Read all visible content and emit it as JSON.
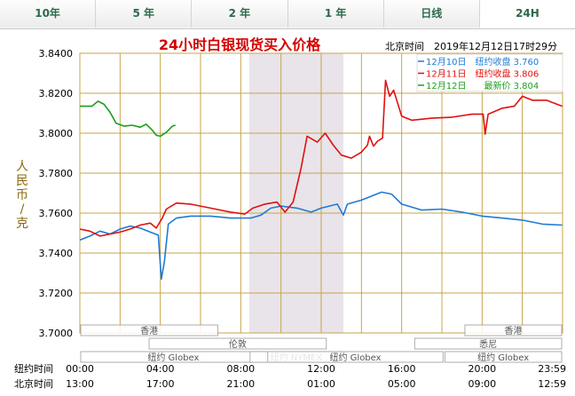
{
  "tabs": [
    {
      "label": "10年",
      "active": false
    },
    {
      "label": "5 年",
      "active": false
    },
    {
      "label": "2 年",
      "active": false
    },
    {
      "label": "1 年",
      "active": false
    },
    {
      "label": "日线",
      "active": false
    },
    {
      "label": "24H",
      "active": true
    }
  ],
  "chart_data": {
    "type": "line",
    "title": "24小时白银现货买入价格",
    "timestamp": "北京时间　2019年12月12日17时29分",
    "ylabel": "人民币/克",
    "ylim": [
      3.7,
      3.84
    ],
    "yticks": [
      "3.7000",
      "3.7200",
      "3.7400",
      "3.7600",
      "3.7800",
      "3.8000",
      "3.8200",
      "3.8400"
    ],
    "x_rows": [
      {
        "label": "纽约时间",
        "ticks": [
          "00:00",
          "04:00",
          "08:00",
          "12:00",
          "16:00",
          "20:00",
          "23:59"
        ]
      },
      {
        "label": "北京时间",
        "ticks": [
          "13:00",
          "17:00",
          "21:00",
          "01:00",
          "05:00",
          "09:00",
          "12:59"
        ]
      }
    ],
    "xlim": [
      0,
      24
    ],
    "grid": true,
    "legend_position": "top-right",
    "highlight_band": [
      8.42,
      13.1
    ],
    "series": [
      {
        "name": "12月10日",
        "legend": "12月10日　纽约收盘 3.760",
        "color": "#1f7ad4",
        "points": [
          [
            0,
            3.7465
          ],
          [
            0.5,
            3.7485
          ],
          [
            1,
            3.751
          ],
          [
            1.5,
            3.7495
          ],
          [
            2,
            3.752
          ],
          [
            2.5,
            3.7535
          ],
          [
            3,
            3.7525
          ],
          [
            3.5,
            3.7505
          ],
          [
            3.9,
            3.749
          ],
          [
            4.05,
            3.727
          ],
          [
            4.2,
            3.7355
          ],
          [
            4.4,
            3.7545
          ],
          [
            4.8,
            3.7575
          ],
          [
            5.5,
            3.7585
          ],
          [
            6.5,
            3.7585
          ],
          [
            7.5,
            3.7575
          ],
          [
            8.5,
            3.7575
          ],
          [
            9,
            3.759
          ],
          [
            9.5,
            3.7625
          ],
          [
            10,
            3.7635
          ],
          [
            10.8,
            3.7625
          ],
          [
            11.5,
            3.7605
          ],
          [
            12,
            3.7625
          ],
          [
            12.8,
            3.7645
          ],
          [
            13.1,
            3.759
          ],
          [
            13.3,
            3.7645
          ],
          [
            14,
            3.7665
          ],
          [
            15,
            3.7705
          ],
          [
            15.5,
            3.7695
          ],
          [
            16,
            3.7645
          ],
          [
            17,
            3.7615
          ],
          [
            18,
            3.762
          ],
          [
            19,
            3.7605
          ],
          [
            20,
            3.7585
          ],
          [
            21,
            3.7575
          ],
          [
            22,
            3.7565
          ],
          [
            23,
            3.7545
          ],
          [
            23.98,
            3.754
          ]
        ]
      },
      {
        "name": "12月11日",
        "legend": "12月11日　纽约收盘 3.806",
        "color": "#e01010",
        "points": [
          [
            0,
            3.752
          ],
          [
            0.5,
            3.751
          ],
          [
            1,
            3.7485
          ],
          [
            1.5,
            3.7495
          ],
          [
            2,
            3.7505
          ],
          [
            2.5,
            3.752
          ],
          [
            3,
            3.754
          ],
          [
            3.5,
            3.755
          ],
          [
            3.8,
            3.7525
          ],
          [
            4.1,
            3.7575
          ],
          [
            4.3,
            3.762
          ],
          [
            4.8,
            3.765
          ],
          [
            5.5,
            3.7645
          ],
          [
            6.5,
            3.7625
          ],
          [
            7.5,
            3.7605
          ],
          [
            8.2,
            3.7595
          ],
          [
            8.6,
            3.7625
          ],
          [
            9.2,
            3.7645
          ],
          [
            9.8,
            3.7655
          ],
          [
            10.2,
            3.7605
          ],
          [
            10.6,
            3.7655
          ],
          [
            11,
            3.7825
          ],
          [
            11.3,
            3.7985
          ],
          [
            11.8,
            3.7955
          ],
          [
            12.2,
            3.8
          ],
          [
            12.6,
            3.794
          ],
          [
            13,
            3.789
          ],
          [
            13.5,
            3.7875
          ],
          [
            14,
            3.7905
          ],
          [
            14.3,
            3.794
          ],
          [
            14.4,
            3.7985
          ],
          [
            14.6,
            3.7935
          ],
          [
            14.8,
            3.796
          ],
          [
            15.05,
            3.7975
          ],
          [
            15.2,
            3.8265
          ],
          [
            15.4,
            3.8185
          ],
          [
            15.6,
            3.8215
          ],
          [
            16,
            3.8085
          ],
          [
            16.5,
            3.8065
          ],
          [
            17.5,
            3.8075
          ],
          [
            18.5,
            3.808
          ],
          [
            19.5,
            3.8095
          ],
          [
            20.05,
            3.8095
          ],
          [
            20.15,
            3.7995
          ],
          [
            20.3,
            3.8095
          ],
          [
            21,
            3.8125
          ],
          [
            21.6,
            3.8135
          ],
          [
            22,
            3.8185
          ],
          [
            22.5,
            3.8165
          ],
          [
            23.2,
            3.8165
          ],
          [
            23.98,
            3.8135
          ]
        ]
      },
      {
        "name": "12月12日",
        "legend": "12月12日　　最新价 3.804",
        "color": "#1aa01a",
        "points": [
          [
            0,
            3.8135
          ],
          [
            0.6,
            3.8135
          ],
          [
            0.9,
            3.816
          ],
          [
            1.2,
            3.8145
          ],
          [
            1.5,
            3.8105
          ],
          [
            1.8,
            3.805
          ],
          [
            2.2,
            3.8035
          ],
          [
            2.6,
            3.804
          ],
          [
            3,
            3.803
          ],
          [
            3.3,
            3.8045
          ],
          [
            3.6,
            3.8015
          ],
          [
            3.8,
            3.799
          ],
          [
            4.0,
            3.7985
          ],
          [
            4.3,
            3.8005
          ],
          [
            4.6,
            3.8035
          ],
          [
            4.75,
            3.804
          ]
        ]
      }
    ],
    "market_rows": [
      {
        "label": "香港",
        "start": 0,
        "end": 6.9,
        "row": 0
      },
      {
        "label": "香港",
        "start": 19.1,
        "end": 24,
        "row": 0
      },
      {
        "label": "伦敦",
        "start": 3.4,
        "end": 12.3,
        "row": 1
      },
      {
        "label": "悉尼",
        "start": 16.6,
        "end": 24,
        "row": 1
      },
      {
        "label": "纽约 Globex",
        "start": 0,
        "end": 9.3,
        "row": 2
      },
      {
        "label": "纽约 NYMEX",
        "start": 8.42,
        "end": 13.1,
        "row": 2
      },
      {
        "label": "纽约 Globex",
        "start": 9.3,
        "end": 18.1,
        "row": 2
      },
      {
        "label": "纽约 Globex",
        "start": 18.1,
        "end": 24,
        "row": 2
      }
    ]
  }
}
